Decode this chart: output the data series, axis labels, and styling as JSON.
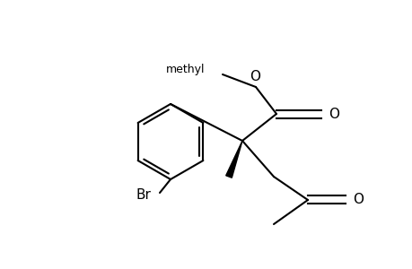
{
  "bg_color": "#ffffff",
  "line_color": "#000000",
  "line_width": 1.5,
  "figsize": [
    4.6,
    3.0
  ],
  "dpi": 100,
  "xlim": [
    0,
    460
  ],
  "ylim": [
    0,
    300
  ]
}
